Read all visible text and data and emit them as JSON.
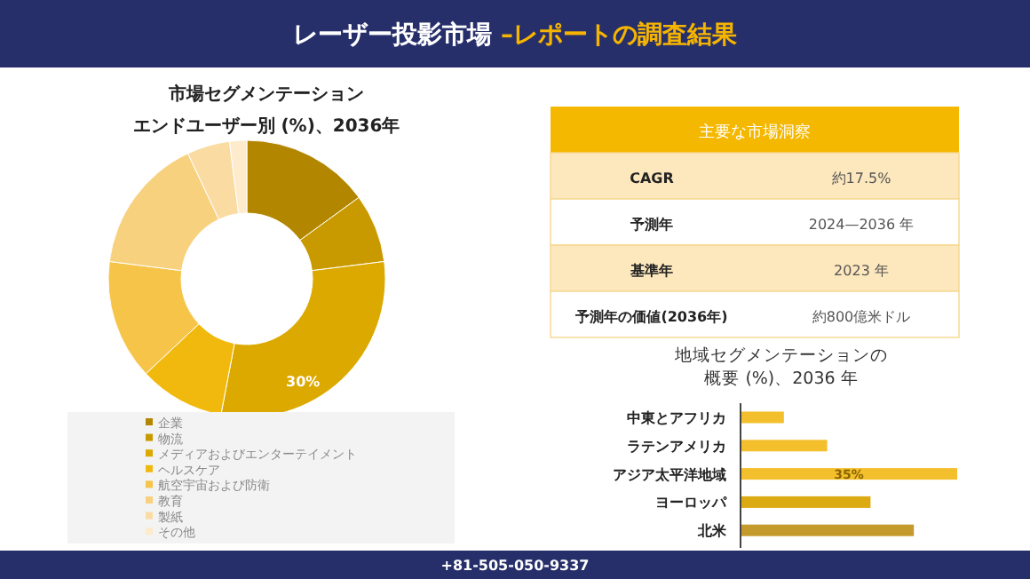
{
  "chart_data": [
    {
      "type": "other",
      "title": "レーザー投影市場 –レポートの調査結果",
      "annotations": [
        "+81-505-050-9337"
      ]
    },
    {
      "type": "donut",
      "title": "市場セグメンテーション",
      "subtitle": "エンドユーザー別 (%)、2036年",
      "categories": [
        "企業",
        "物流",
        "メディアおよびエンターテイメント",
        "ヘルスケア",
        "航空宇宙および防衛",
        "教育",
        "製紙",
        "その他"
      ],
      "values": [
        15,
        8,
        30,
        10,
        14,
        16,
        5,
        2
      ],
      "colors": [
        "#b38600",
        "#c99a00",
        "#dca900",
        "#f1b90d",
        "#f6c449",
        "#f8d17f",
        "#fadca3",
        "#fdebcc"
      ],
      "value_labels": [
        null,
        null,
        "30%",
        null,
        null,
        null,
        null,
        null
      ],
      "legend": "bottom"
    },
    {
      "type": "other",
      "title": "主要な市場洞察",
      "annotations": [
        "CAGR",
        "約17.5%",
        "予測年",
        "2024—2036 年",
        "基準年",
        "2023 年",
        "予測年の価値(2036年)",
        "約800億米ドル"
      ]
    },
    {
      "type": "bar",
      "orientation": "horizontal",
      "title": "地域セグメンテーションの",
      "subtitle": "概要 (%)、2036 年",
      "categories": [
        "中東とアフリカ",
        "ラテンアメリカ",
        "アジア太平洋地域",
        "ヨーロッパ",
        "北米"
      ],
      "values": [
        7,
        14,
        35,
        21,
        28
      ],
      "colors": [
        "#f4bf2c",
        "#f4bf2c",
        "#f4bf2c",
        "#dcaa12",
        "#c49a2c"
      ],
      "value_labels": [
        null,
        null,
        "35%",
        null,
        null
      ]
    }
  ]
}
